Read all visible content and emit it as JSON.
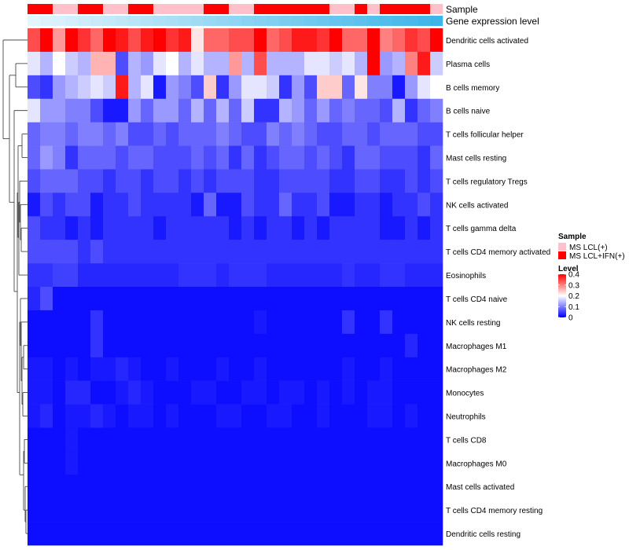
{
  "chart_data": {
    "type": "heatmap",
    "annotation_tracks": [
      {
        "label": "Sample",
        "values": [
          "IFN",
          "IFN",
          "LCL",
          "LCL",
          "IFN",
          "IFN",
          "LCL",
          "LCL",
          "IFN",
          "IFN",
          "LCL",
          "LCL",
          "LCL",
          "LCL",
          "IFN",
          "IFN",
          "LCL",
          "LCL",
          "IFN",
          "IFN",
          "IFN",
          "IFN",
          "IFN",
          "IFN",
          "LCL",
          "LCL",
          "IFN",
          "LCL",
          "IFN",
          "IFN",
          "IFN",
          "IFN",
          "LCL"
        ]
      },
      {
        "label": "Gene expression level",
        "values": [
          0.02,
          0.05,
          0.08,
          0.11,
          0.14,
          0.17,
          0.2,
          0.23,
          0.26,
          0.29,
          0.32,
          0.35,
          0.38,
          0.41,
          0.44,
          0.47,
          0.5,
          0.53,
          0.56,
          0.59,
          0.62,
          0.65,
          0.68,
          0.71,
          0.74,
          0.77,
          0.8,
          0.83,
          0.86,
          0.89,
          0.92,
          0.95,
          0.98
        ]
      }
    ],
    "rows": [
      "Dendritic cells activated",
      "Plasma cells",
      "B cells memory",
      "B cells naive",
      "T cells follicular helper",
      "Mast cells resting",
      "T cells regulatory  Tregs",
      "NK cells activated",
      "T cells gamma delta",
      "T cells CD4 memory activated",
      "Eosinophils",
      "T cells CD4 naive",
      "NK cells resting",
      "Macrophages M1",
      "Macrophages M2",
      "Monocytes",
      "Neutrophils",
      "T cells CD8",
      "Macrophages M0",
      "Mast cells activated",
      "T cells CD4 memory resting",
      "Dendritic cells resting"
    ],
    "n_columns": 33,
    "matrix": [
      [
        0.34,
        0.4,
        0.28,
        0.4,
        0.36,
        0.32,
        0.4,
        0.38,
        0.34,
        0.38,
        0.4,
        0.36,
        0.38,
        0.22,
        0.32,
        0.32,
        0.34,
        0.34,
        0.4,
        0.32,
        0.34,
        0.38,
        0.38,
        0.36,
        0.4,
        0.32,
        0.32,
        0.4,
        0.3,
        0.32,
        0.36,
        0.34,
        0.4
      ],
      [
        0.18,
        0.14,
        0.2,
        0.16,
        0.14,
        0.26,
        0.26,
        0.06,
        0.14,
        0.12,
        0.18,
        0.2,
        0.14,
        0.18,
        0.14,
        0.14,
        0.28,
        0.14,
        0.34,
        0.14,
        0.14,
        0.14,
        0.18,
        0.18,
        0.16,
        0.18,
        0.14,
        0.4,
        0.12,
        0.14,
        0.3,
        0.38,
        0.16
      ],
      [
        0.06,
        0.04,
        0.12,
        0.14,
        0.16,
        0.18,
        0.16,
        0.38,
        0.14,
        0.18,
        0.02,
        0.12,
        0.1,
        0.06,
        0.24,
        0.04,
        0.12,
        0.18,
        0.18,
        0.16,
        0.04,
        0.12,
        0.06,
        0.24,
        0.24,
        0.08,
        0.22,
        0.1,
        0.1,
        0.02,
        0.12,
        0.18,
        0.2
      ],
      [
        0.18,
        0.12,
        0.12,
        0.1,
        0.1,
        0.06,
        0.02,
        0.02,
        0.12,
        0.08,
        0.12,
        0.12,
        0.08,
        0.14,
        0.08,
        0.14,
        0.08,
        0.16,
        0.04,
        0.04,
        0.14,
        0.12,
        0.08,
        0.12,
        0.08,
        0.1,
        0.08,
        0.08,
        0.06,
        0.14,
        0.04,
        0.08,
        0.1
      ],
      [
        0.08,
        0.1,
        0.1,
        0.08,
        0.1,
        0.1,
        0.08,
        0.1,
        0.06,
        0.06,
        0.08,
        0.06,
        0.08,
        0.08,
        0.08,
        0.1,
        0.08,
        0.06,
        0.06,
        0.1,
        0.08,
        0.1,
        0.08,
        0.06,
        0.06,
        0.08,
        0.08,
        0.06,
        0.08,
        0.08,
        0.08,
        0.06,
        0.06
      ],
      [
        0.08,
        0.12,
        0.1,
        0.04,
        0.08,
        0.08,
        0.08,
        0.06,
        0.08,
        0.08,
        0.06,
        0.06,
        0.06,
        0.08,
        0.06,
        0.08,
        0.04,
        0.08,
        0.04,
        0.06,
        0.08,
        0.08,
        0.06,
        0.08,
        0.06,
        0.04,
        0.08,
        0.08,
        0.06,
        0.06,
        0.06,
        0.04,
        0.08
      ],
      [
        0.06,
        0.08,
        0.08,
        0.08,
        0.06,
        0.06,
        0.04,
        0.06,
        0.06,
        0.04,
        0.06,
        0.06,
        0.04,
        0.06,
        0.04,
        0.06,
        0.06,
        0.06,
        0.04,
        0.04,
        0.06,
        0.06,
        0.06,
        0.06,
        0.04,
        0.04,
        0.06,
        0.06,
        0.04,
        0.04,
        0.06,
        0.04,
        0.06
      ],
      [
        0.02,
        0.06,
        0.04,
        0.06,
        0.06,
        0.02,
        0.04,
        0.04,
        0.06,
        0.04,
        0.04,
        0.04,
        0.04,
        0.02,
        0.08,
        0.02,
        0.02,
        0.06,
        0.04,
        0.04,
        0.08,
        0.04,
        0.04,
        0.06,
        0.02,
        0.02,
        0.04,
        0.04,
        0.02,
        0.04,
        0.04,
        0.06,
        0.04
      ],
      [
        0.06,
        0.04,
        0.04,
        0.02,
        0.04,
        0.02,
        0.04,
        0.04,
        0.04,
        0.04,
        0.02,
        0.04,
        0.04,
        0.04,
        0.04,
        0.04,
        0.02,
        0.04,
        0.02,
        0.04,
        0.04,
        0.02,
        0.04,
        0.02,
        0.04,
        0.04,
        0.04,
        0.04,
        0.02,
        0.02,
        0.04,
        0.02,
        0.04
      ],
      [
        0.06,
        0.06,
        0.06,
        0.06,
        0.04,
        0.06,
        0.04,
        0.04,
        0.04,
        0.04,
        0.04,
        0.04,
        0.04,
        0.04,
        0.04,
        0.04,
        0.04,
        0.04,
        0.04,
        0.04,
        0.04,
        0.04,
        0.04,
        0.04,
        0.04,
        0.04,
        0.04,
        0.04,
        0.04,
        0.04,
        0.04,
        0.04,
        0.04
      ],
      [
        0.04,
        0.04,
        0.05,
        0.05,
        0.03,
        0.03,
        0.03,
        0.03,
        0.03,
        0.03,
        0.03,
        0.03,
        0.04,
        0.04,
        0.04,
        0.03,
        0.04,
        0.04,
        0.04,
        0.03,
        0.03,
        0.03,
        0.03,
        0.03,
        0.03,
        0.04,
        0.03,
        0.03,
        0.04,
        0.04,
        0.03,
        0.03,
        0.03
      ],
      [
        0.03,
        0.06,
        0.01,
        0.01,
        0.01,
        0.01,
        0.01,
        0.01,
        0.01,
        0.01,
        0.01,
        0.01,
        0.01,
        0.01,
        0.01,
        0.01,
        0.01,
        0.01,
        0.01,
        0.01,
        0.01,
        0.01,
        0.01,
        0.01,
        0.01,
        0.01,
        0.01,
        0.01,
        0.01,
        0.01,
        0.01,
        0.01,
        0.01
      ],
      [
        0.01,
        0.01,
        0.01,
        0.01,
        0.01,
        0.04,
        0.01,
        0.01,
        0.01,
        0.01,
        0.01,
        0.01,
        0.01,
        0.01,
        0.01,
        0.01,
        0.01,
        0.01,
        0.02,
        0.01,
        0.01,
        0.01,
        0.01,
        0.01,
        0.01,
        0.04,
        0.01,
        0.01,
        0.04,
        0.01,
        0.01,
        0.01,
        0.01
      ],
      [
        0.01,
        0.01,
        0.01,
        0.01,
        0.01,
        0.04,
        0.01,
        0.01,
        0.01,
        0.01,
        0.01,
        0.01,
        0.01,
        0.01,
        0.01,
        0.01,
        0.01,
        0.01,
        0.01,
        0.01,
        0.01,
        0.01,
        0.01,
        0.01,
        0.01,
        0.01,
        0.01,
        0.01,
        0.01,
        0.01,
        0.03,
        0.01,
        0.01
      ],
      [
        0.02,
        0.02,
        0.01,
        0.02,
        0.01,
        0.02,
        0.02,
        0.03,
        0.02,
        0.01,
        0.01,
        0.02,
        0.01,
        0.01,
        0.01,
        0.02,
        0.01,
        0.01,
        0.02,
        0.01,
        0.01,
        0.01,
        0.01,
        0.01,
        0.01,
        0.02,
        0.01,
        0.01,
        0.02,
        0.01,
        0.01,
        0.01,
        0.01
      ],
      [
        0.02,
        0.02,
        0.01,
        0.03,
        0.03,
        0.01,
        0.01,
        0.02,
        0.03,
        0.02,
        0.01,
        0.01,
        0.01,
        0.02,
        0.02,
        0.01,
        0.01,
        0.02,
        0.02,
        0.01,
        0.02,
        0.02,
        0.01,
        0.02,
        0.01,
        0.02,
        0.01,
        0.02,
        0.02,
        0.01,
        0.01,
        0.01,
        0.01
      ],
      [
        0.02,
        0.03,
        0.01,
        0.02,
        0.02,
        0.03,
        0.02,
        0.01,
        0.02,
        0.02,
        0.01,
        0.02,
        0.01,
        0.01,
        0.01,
        0.02,
        0.02,
        0.01,
        0.01,
        0.02,
        0.02,
        0.01,
        0.01,
        0.02,
        0.01,
        0.01,
        0.01,
        0.02,
        0.02,
        0.01,
        0.02,
        0.01,
        0.01
      ],
      [
        0.01,
        0.01,
        0.01,
        0.02,
        0.01,
        0.01,
        0.01,
        0.01,
        0.01,
        0.01,
        0.01,
        0.01,
        0.01,
        0.01,
        0.01,
        0.01,
        0.01,
        0.01,
        0.01,
        0.01,
        0.01,
        0.01,
        0.01,
        0.01,
        0.01,
        0.01,
        0.01,
        0.01,
        0.01,
        0.01,
        0.01,
        0.01,
        0.01
      ],
      [
        0.01,
        0.01,
        0.01,
        0.02,
        0.01,
        0.01,
        0.01,
        0.01,
        0.01,
        0.01,
        0.01,
        0.01,
        0.01,
        0.01,
        0.01,
        0.01,
        0.01,
        0.01,
        0.01,
        0.01,
        0.01,
        0.01,
        0.01,
        0.01,
        0.01,
        0.01,
        0.01,
        0.01,
        0.01,
        0.01,
        0.01,
        0.01,
        0.01
      ],
      [
        0.01,
        0.01,
        0.01,
        0.01,
        0.01,
        0.01,
        0.01,
        0.01,
        0.01,
        0.01,
        0.01,
        0.01,
        0.01,
        0.01,
        0.01,
        0.01,
        0.01,
        0.01,
        0.01,
        0.01,
        0.01,
        0.01,
        0.01,
        0.01,
        0.01,
        0.01,
        0.01,
        0.01,
        0.01,
        0.01,
        0.01,
        0.01,
        0.01
      ],
      [
        0.01,
        0.01,
        0.01,
        0.01,
        0.01,
        0.01,
        0.01,
        0.01,
        0.01,
        0.01,
        0.01,
        0.01,
        0.01,
        0.01,
        0.01,
        0.01,
        0.01,
        0.01,
        0.01,
        0.01,
        0.01,
        0.01,
        0.01,
        0.01,
        0.01,
        0.01,
        0.01,
        0.01,
        0.01,
        0.01,
        0.01,
        0.01,
        0.01
      ],
      [
        0.01,
        0.01,
        0.01,
        0.01,
        0.01,
        0.01,
        0.01,
        0.01,
        0.01,
        0.01,
        0.01,
        0.01,
        0.01,
        0.01,
        0.01,
        0.01,
        0.01,
        0.01,
        0.01,
        0.01,
        0.01,
        0.01,
        0.01,
        0.01,
        0.01,
        0.01,
        0.01,
        0.01,
        0.01,
        0.01,
        0.01,
        0.01,
        0.01
      ]
    ],
    "legends": {
      "sample": {
        "title": "Sample",
        "items": [
          {
            "label": "MS LCL(+)",
            "key": "LCL",
            "color": "#ffc0cb"
          },
          {
            "label": "MS LCL+IFN(+)",
            "key": "IFN",
            "color": "#ff0000"
          }
        ]
      },
      "level": {
        "title": "Level",
        "range": [
          0,
          0.4
        ],
        "ticks": [
          {
            "value": 0,
            "label": "0"
          },
          {
            "value": 0.1,
            "label": "0.1"
          },
          {
            "value": 0.2,
            "label": "0.2"
          },
          {
            "value": 0.3,
            "label": "0.3"
          },
          {
            "value": 0.4,
            "label": "0.4"
          }
        ],
        "colors": {
          "low": "#0000ff",
          "mid": "#ffffff",
          "high": "#ff0000"
        }
      }
    },
    "expression_colors": {
      "low": "#e6f6fd",
      "high": "#3ab4e8"
    },
    "dendrogram": "row hierarchical clustering"
  }
}
